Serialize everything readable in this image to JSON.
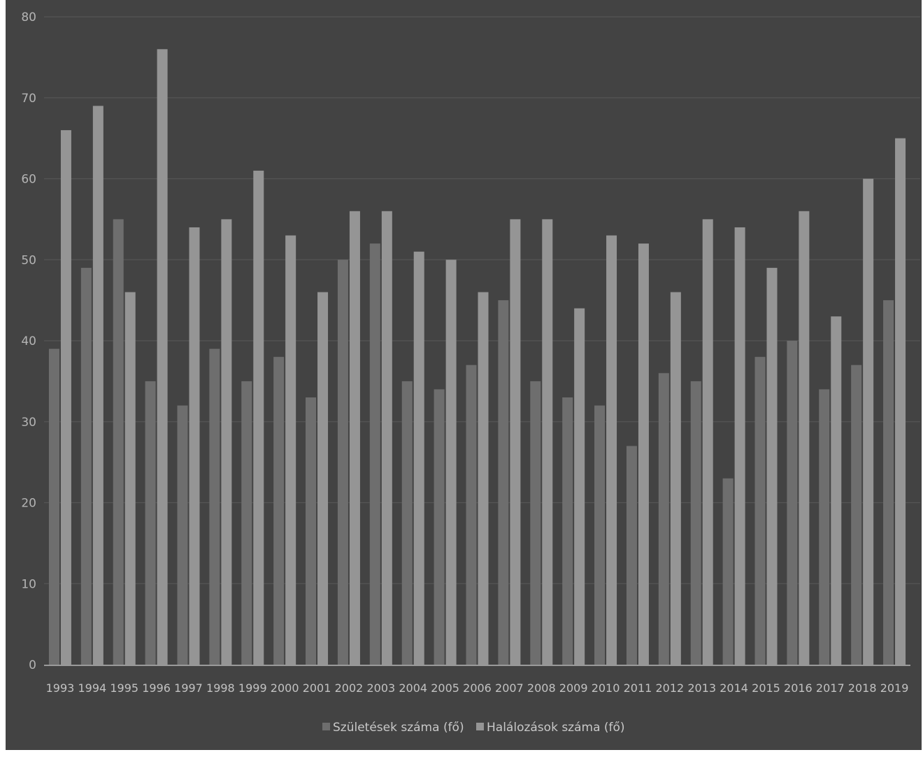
{
  "chart_data": {
    "type": "bar",
    "title": "",
    "xlabel": "",
    "ylabel": "",
    "ylim": [
      0,
      80
    ],
    "yticks": [
      0,
      10,
      20,
      30,
      40,
      50,
      60,
      70,
      80
    ],
    "grid": true,
    "legend_position": "bottom",
    "categories": [
      "1993",
      "1994",
      "1995",
      "1996",
      "1997",
      "1998",
      "1999",
      "2000",
      "2001",
      "2002",
      "2003",
      "2004",
      "2005",
      "2006",
      "2007",
      "2008",
      "2009",
      "2010",
      "2011",
      "2012",
      "2013",
      "2014",
      "2015",
      "2016",
      "2017",
      "2018",
      "2019"
    ],
    "series": [
      {
        "name": "Születések száma (fő)",
        "color": "#6e6e6e",
        "values": [
          39,
          49,
          55,
          35,
          32,
          39,
          35,
          38,
          33,
          50,
          52,
          35,
          34,
          37,
          45,
          35,
          33,
          32,
          27,
          36,
          35,
          23,
          38,
          40,
          34,
          37,
          45
        ]
      },
      {
        "name": "Halálozások száma (fő)",
        "color": "#959595",
        "values": [
          66,
          69,
          46,
          76,
          54,
          55,
          61,
          53,
          46,
          56,
          56,
          51,
          50,
          46,
          55,
          55,
          44,
          53,
          52,
          46,
          55,
          54,
          49,
          56,
          43,
          60,
          65
        ]
      }
    ],
    "colors": {
      "background": "#434343",
      "grid": "#555555",
      "axis": "#9a9a9a"
    }
  }
}
